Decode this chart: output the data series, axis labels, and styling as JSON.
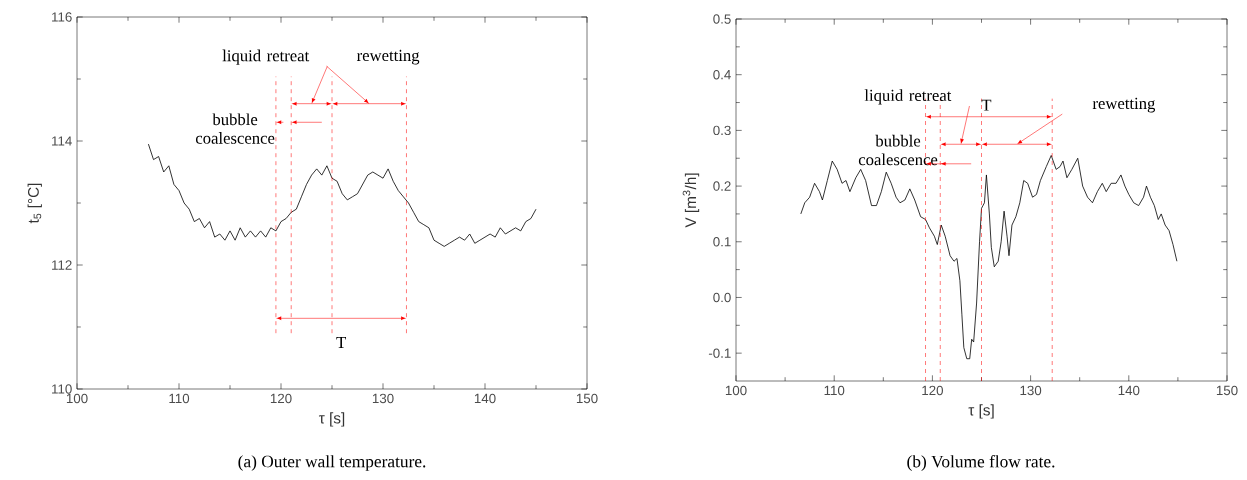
{
  "chart_data": [
    {
      "type": "line",
      "title": "(a) Outer wall temperature.",
      "xlabel": "τ [s]",
      "ylabel": "t$_{5}$ [°C]",
      "color": "#000000",
      "grid": false,
      "marker": "none",
      "line_style": "solid",
      "xlim": [
        100,
        150
      ],
      "ylim": [
        110,
        116
      ],
      "xticks": [
        100,
        110,
        120,
        130,
        140,
        150
      ],
      "yticks": [
        110,
        112,
        114,
        116
      ],
      "x": [
        107,
        107.5,
        108,
        108.5,
        109,
        109.5,
        110,
        110.5,
        111,
        111.5,
        112,
        112.5,
        113,
        113.5,
        114,
        114.5,
        115,
        115.5,
        116,
        116.5,
        117,
        117.5,
        118,
        118.5,
        119,
        119.5,
        120,
        120.5,
        121,
        121.5,
        122,
        122.5,
        123,
        123.5,
        124,
        124.5,
        125,
        125.5,
        126,
        126.5,
        127,
        127.5,
        128,
        128.5,
        129,
        129.5,
        130,
        130.5,
        131,
        131.5,
        132,
        132.5,
        133,
        133.5,
        134,
        134.5,
        135,
        135.5,
        136,
        136.5,
        137,
        137.5,
        138,
        138.5,
        139,
        139.5,
        140,
        140.5,
        141,
        141.5,
        142,
        142.5,
        143,
        143.5,
        144,
        144.5,
        145
      ],
      "values": [
        113.95,
        113.7,
        113.75,
        113.5,
        113.6,
        113.3,
        113.2,
        113.0,
        112.9,
        112.7,
        112.75,
        112.6,
        112.7,
        112.45,
        112.5,
        112.4,
        112.55,
        112.4,
        112.6,
        112.45,
        112.55,
        112.45,
        112.55,
        112.45,
        112.6,
        112.55,
        112.7,
        112.75,
        112.85,
        112.9,
        113.1,
        113.3,
        113.45,
        113.55,
        113.45,
        113.6,
        113.4,
        113.35,
        113.15,
        113.05,
        113.1,
        113.15,
        113.3,
        113.45,
        113.5,
        113.45,
        113.4,
        113.55,
        113.35,
        113.2,
        113.1,
        113.0,
        112.85,
        112.7,
        112.65,
        112.6,
        112.4,
        112.35,
        112.3,
        112.35,
        112.4,
        112.45,
        112.4,
        112.5,
        112.35,
        112.4,
        112.45,
        112.5,
        112.45,
        112.6,
        112.5,
        112.55,
        112.6,
        112.55,
        112.7,
        112.75,
        112.9
      ],
      "ref_lines": [
        {
          "axis": "x",
          "value": 119.5,
          "color": "#ff0000",
          "line_style": "dashed"
        },
        {
          "axis": "x",
          "value": 121,
          "color": "#ff0000",
          "line_style": "dashed"
        },
        {
          "axis": "x",
          "value": 125,
          "color": "#ff0000",
          "line_style": "dashed"
        },
        {
          "axis": "x",
          "value": 132.3,
          "color": "#ff0000",
          "line_style": "dashed"
        }
      ],
      "annotations": [
        "liquid retreat",
        "rewetting",
        "bubble coalescence",
        "T"
      ]
    },
    {
      "type": "line",
      "title": "(b) Volume flow rate.",
      "xlabel": "τ [s]",
      "ylabel": "V [m$^{3}$/h]",
      "color": "#000000",
      "grid": false,
      "marker": "none",
      "line_style": "solid",
      "xlim": [
        100,
        150
      ],
      "ylim": [
        -0.15,
        0.5
      ],
      "xticks": [
        100,
        110,
        120,
        130,
        140,
        150
      ],
      "yticks": [
        -0.1,
        {
          "value": 0,
          "label": "0.0"
        },
        0.1,
        0.2,
        0.3,
        0.4,
        0.5
      ],
      "x": [
        106.6,
        107,
        107.5,
        108,
        108.5,
        108.8,
        109.3,
        109.8,
        110.3,
        110.8,
        111.2,
        111.6,
        112.2,
        112.7,
        113.2,
        113.8,
        114.3,
        114.8,
        115.3,
        115.8,
        116.3,
        116.7,
        117.2,
        117.7,
        118.2,
        118.8,
        119.3,
        119.7,
        120.2,
        120.5,
        120.9,
        121.3,
        121.8,
        122.2,
        122.5,
        122.8,
        123,
        123.2,
        123.5,
        123.8,
        124.0,
        124.2,
        124.5,
        124.8,
        125.0,
        125.3,
        125.5,
        125.8,
        126,
        126.3,
        126.7,
        127.0,
        127.3,
        127.6,
        127.8,
        128.1,
        128.5,
        128.9,
        129.3,
        129.7,
        130.2,
        130.6,
        131,
        131.6,
        132.1,
        132.6,
        133,
        133.3,
        133.7,
        134.2,
        134.8,
        135.3,
        135.8,
        136.3,
        136.8,
        137.3,
        137.7,
        138.2,
        138.7,
        139.2,
        139.6,
        140,
        140.5,
        141,
        141.5,
        141.8,
        142.2,
        142.6,
        143,
        143.3,
        143.7,
        144.1,
        144.5,
        144.9
      ],
      "values": [
        0.15,
        0.17,
        0.18,
        0.205,
        0.19,
        0.175,
        0.21,
        0.245,
        0.23,
        0.205,
        0.21,
        0.19,
        0.215,
        0.23,
        0.21,
        0.165,
        0.165,
        0.19,
        0.225,
        0.205,
        0.18,
        0.17,
        0.175,
        0.195,
        0.175,
        0.145,
        0.14,
        0.125,
        0.11,
        0.095,
        0.13,
        0.11,
        0.075,
        0.065,
        0.07,
        0.03,
        -0.03,
        -0.09,
        -0.11,
        -0.11,
        -0.075,
        -0.08,
        -0.01,
        0.1,
        0.16,
        0.17,
        0.22,
        0.15,
        0.09,
        0.055,
        0.065,
        0.1,
        0.155,
        0.11,
        0.075,
        0.13,
        0.145,
        0.17,
        0.21,
        0.205,
        0.18,
        0.185,
        0.21,
        0.235,
        0.255,
        0.23,
        0.235,
        0.245,
        0.215,
        0.23,
        0.25,
        0.2,
        0.18,
        0.17,
        0.19,
        0.205,
        0.19,
        0.205,
        0.205,
        0.22,
        0.2,
        0.185,
        0.17,
        0.165,
        0.18,
        0.2,
        0.18,
        0.165,
        0.14,
        0.15,
        0.13,
        0.12,
        0.095,
        0.065
      ],
      "ref_lines": [
        {
          "axis": "x",
          "value": 119.3,
          "color": "#ff0000",
          "line_style": "dashed"
        },
        {
          "axis": "x",
          "value": 120.8,
          "color": "#ff0000",
          "line_style": "dashed"
        },
        {
          "axis": "x",
          "value": 125,
          "color": "#ff0000",
          "line_style": "dashed"
        },
        {
          "axis": "x",
          "value": 132.2,
          "color": "#ff0000",
          "line_style": "dashed"
        }
      ],
      "annotations": [
        "liquid retreat",
        "rewetting",
        "bubble coalescence",
        "T"
      ]
    }
  ]
}
